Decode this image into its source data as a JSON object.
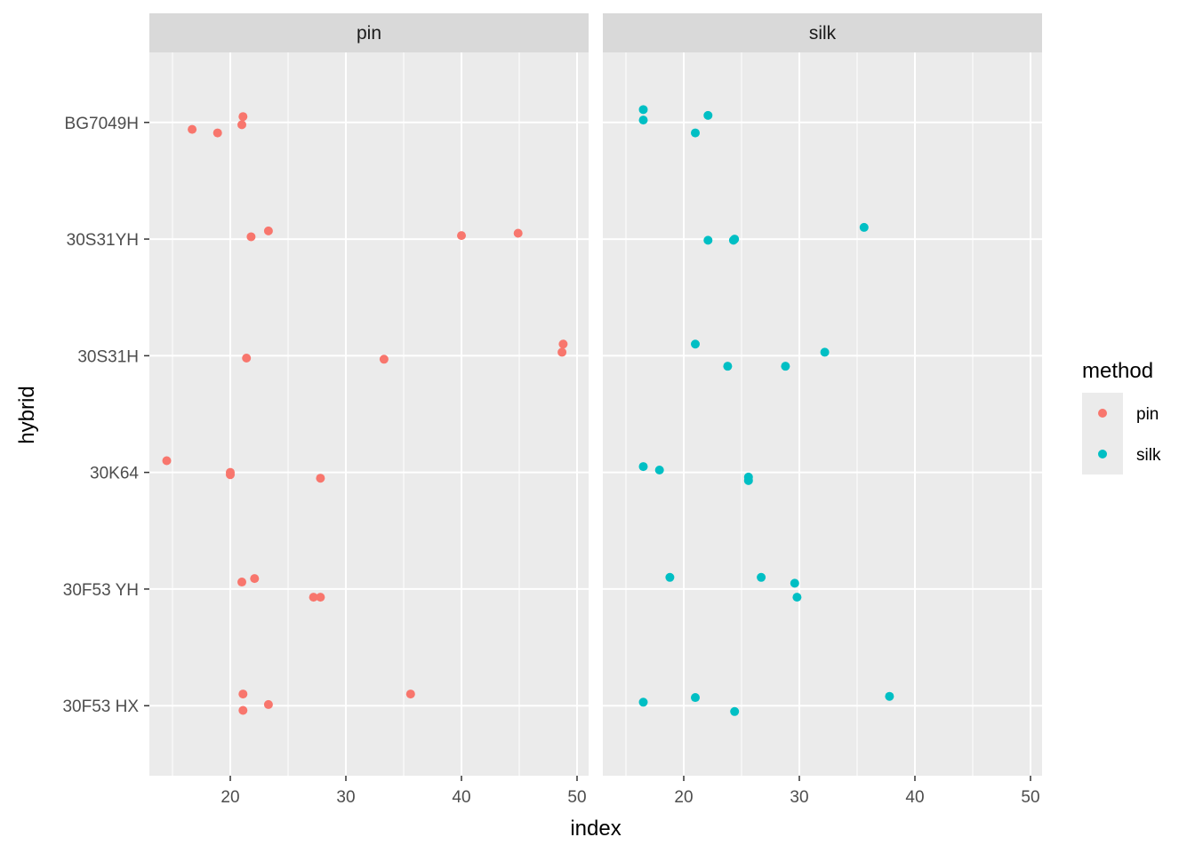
{
  "chart_data": {
    "type": "scatter",
    "xlabel": "index",
    "ylabel": "hybrid",
    "xlim": [
      13,
      51
    ],
    "x_ticks": [
      20,
      30,
      40,
      50
    ],
    "categories": [
      "30F53 HX",
      "30F53 YH",
      "30K64",
      "30S31H",
      "30S31YH",
      "BG7049H"
    ],
    "panels": [
      "pin",
      "silk"
    ],
    "legend": {
      "title": "method",
      "position": "right",
      "entries": [
        {
          "label": "pin",
          "color": "#F8766D"
        },
        {
          "label": "silk",
          "color": "#00BFC4"
        }
      ]
    },
    "grid": true,
    "series": [
      {
        "name": "pin",
        "color": "#F8766D",
        "points": [
          {
            "x": 21.1,
            "y": "BG7049H",
            "jitter": 0.05
          },
          {
            "x": 21.0,
            "y": "BG7049H",
            "jitter": -0.02
          },
          {
            "x": 16.7,
            "y": "BG7049H",
            "jitter": -0.06
          },
          {
            "x": 18.9,
            "y": "BG7049H",
            "jitter": -0.09
          },
          {
            "x": 23.3,
            "y": "30S31YH",
            "jitter": 0.07
          },
          {
            "x": 21.8,
            "y": "30S31YH",
            "jitter": 0.02
          },
          {
            "x": 40.0,
            "y": "30S31YH",
            "jitter": 0.03
          },
          {
            "x": 44.9,
            "y": "30S31YH",
            "jitter": 0.05
          },
          {
            "x": 48.8,
            "y": "30S31H",
            "jitter": 0.1
          },
          {
            "x": 48.7,
            "y": "30S31H",
            "jitter": 0.03
          },
          {
            "x": 21.4,
            "y": "30S31H",
            "jitter": -0.02
          },
          {
            "x": 33.3,
            "y": "30S31H",
            "jitter": -0.03
          },
          {
            "x": 14.5,
            "y": "30K64",
            "jitter": 0.1
          },
          {
            "x": 20.0,
            "y": "30K64",
            "jitter": 0.0
          },
          {
            "x": 20.0,
            "y": "30K64",
            "jitter": -0.02
          },
          {
            "x": 27.8,
            "y": "30K64",
            "jitter": -0.05
          },
          {
            "x": 22.1,
            "y": "30F53 YH",
            "jitter": 0.09
          },
          {
            "x": 21.0,
            "y": "30F53 YH",
            "jitter": 0.06
          },
          {
            "x": 27.2,
            "y": "30F53 YH",
            "jitter": -0.07
          },
          {
            "x": 27.8,
            "y": "30F53 YH",
            "jitter": -0.07
          },
          {
            "x": 21.1,
            "y": "30F53 HX",
            "jitter": 0.1
          },
          {
            "x": 35.6,
            "y": "30F53 HX",
            "jitter": 0.1
          },
          {
            "x": 23.3,
            "y": "30F53 HX",
            "jitter": 0.01
          },
          {
            "x": 21.1,
            "y": "30F53 HX",
            "jitter": -0.04
          }
        ]
      },
      {
        "name": "silk",
        "color": "#00BFC4",
        "points": [
          {
            "x": 16.5,
            "y": "BG7049H",
            "jitter": 0.11
          },
          {
            "x": 22.1,
            "y": "BG7049H",
            "jitter": 0.06
          },
          {
            "x": 16.5,
            "y": "BG7049H",
            "jitter": 0.02
          },
          {
            "x": 21.0,
            "y": "BG7049H",
            "jitter": -0.09
          },
          {
            "x": 35.6,
            "y": "30S31YH",
            "jitter": 0.1
          },
          {
            "x": 24.4,
            "y": "30S31YH",
            "jitter": 0.0
          },
          {
            "x": 24.3,
            "y": "30S31YH",
            "jitter": -0.01
          },
          {
            "x": 22.1,
            "y": "30S31YH",
            "jitter": -0.01
          },
          {
            "x": 21.0,
            "y": "30S31H",
            "jitter": 0.1
          },
          {
            "x": 32.2,
            "y": "30S31H",
            "jitter": 0.03
          },
          {
            "x": 23.8,
            "y": "30S31H",
            "jitter": -0.09
          },
          {
            "x": 28.8,
            "y": "30S31H",
            "jitter": -0.09
          },
          {
            "x": 16.5,
            "y": "30K64",
            "jitter": 0.05
          },
          {
            "x": 17.9,
            "y": "30K64",
            "jitter": 0.02
          },
          {
            "x": 25.6,
            "y": "30K64",
            "jitter": -0.04
          },
          {
            "x": 25.6,
            "y": "30K64",
            "jitter": -0.07
          },
          {
            "x": 18.8,
            "y": "30F53 YH",
            "jitter": 0.1
          },
          {
            "x": 26.7,
            "y": "30F53 YH",
            "jitter": 0.1
          },
          {
            "x": 29.6,
            "y": "30F53 YH",
            "jitter": 0.05
          },
          {
            "x": 29.8,
            "y": "30F53 YH",
            "jitter": -0.07
          },
          {
            "x": 37.8,
            "y": "30F53 HX",
            "jitter": 0.08
          },
          {
            "x": 21.0,
            "y": "30F53 HX",
            "jitter": 0.07
          },
          {
            "x": 16.5,
            "y": "30F53 HX",
            "jitter": 0.03
          },
          {
            "x": 24.4,
            "y": "30F53 HX",
            "jitter": -0.05
          }
        ]
      }
    ]
  }
}
